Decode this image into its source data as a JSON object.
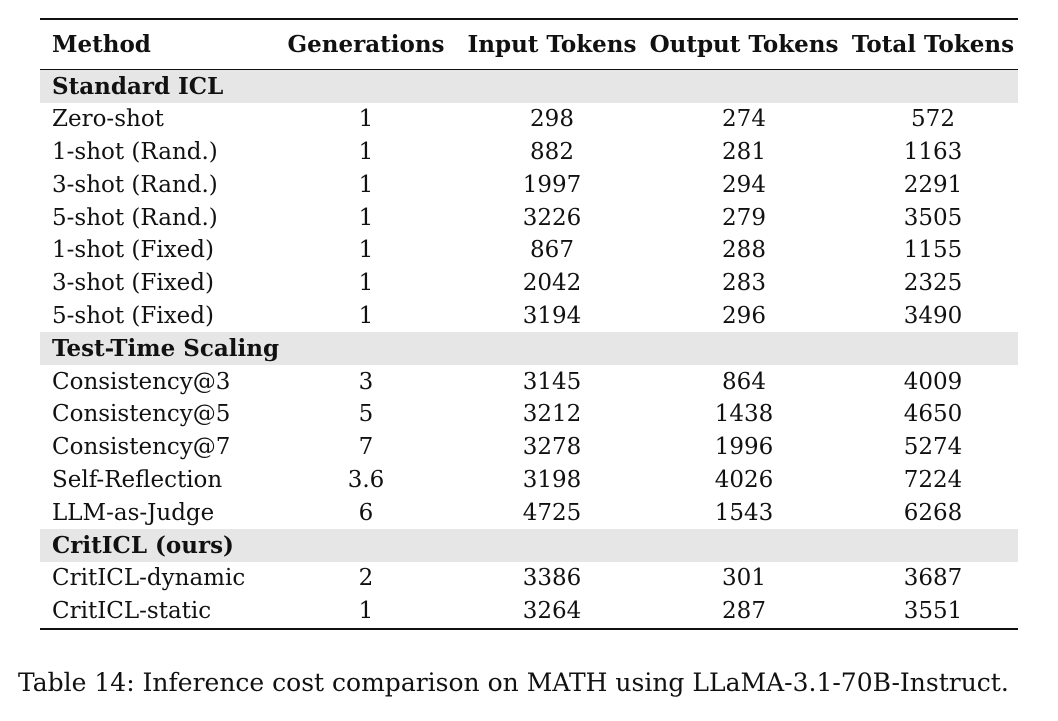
{
  "table": {
    "headers": [
      "Method",
      "Generations",
      "Input Tokens",
      "Output Tokens",
      "Total Tokens"
    ],
    "sections": [
      {
        "title": "Standard ICL",
        "rows": [
          [
            "Zero-shot",
            "1",
            "298",
            "274",
            "572"
          ],
          [
            "1-shot (Rand.)",
            "1",
            "882",
            "281",
            "1163"
          ],
          [
            "3-shot (Rand.)",
            "1",
            "1997",
            "294",
            "2291"
          ],
          [
            "5-shot (Rand.)",
            "1",
            "3226",
            "279",
            "3505"
          ],
          [
            "1-shot (Fixed)",
            "1",
            "867",
            "288",
            "1155"
          ],
          [
            "3-shot (Fixed)",
            "1",
            "2042",
            "283",
            "2325"
          ],
          [
            "5-shot (Fixed)",
            "1",
            "3194",
            "296",
            "3490"
          ]
        ]
      },
      {
        "title": "Test-Time Scaling",
        "rows": [
          [
            "Consistency@3",
            "3",
            "3145",
            "864",
            "4009"
          ],
          [
            "Consistency@5",
            "5",
            "3212",
            "1438",
            "4650"
          ],
          [
            "Consistency@7",
            "7",
            "3278",
            "1996",
            "5274"
          ],
          [
            "Self-Reflection",
            "3.6",
            "3198",
            "4026",
            "7224"
          ],
          [
            "LLM-as-Judge",
            "6",
            "4725",
            "1543",
            "6268"
          ]
        ]
      },
      {
        "title": "CritICL (ours)",
        "rows": [
          [
            "CritICL-dynamic",
            "2",
            "3386",
            "301",
            "3687"
          ],
          [
            "CritICL-static",
            "1",
            "3264",
            "287",
            "3551"
          ]
        ]
      }
    ]
  },
  "caption": "Table 14: Inference cost comparison on MATH using LLaMA-3.1-70B-Instruct."
}
